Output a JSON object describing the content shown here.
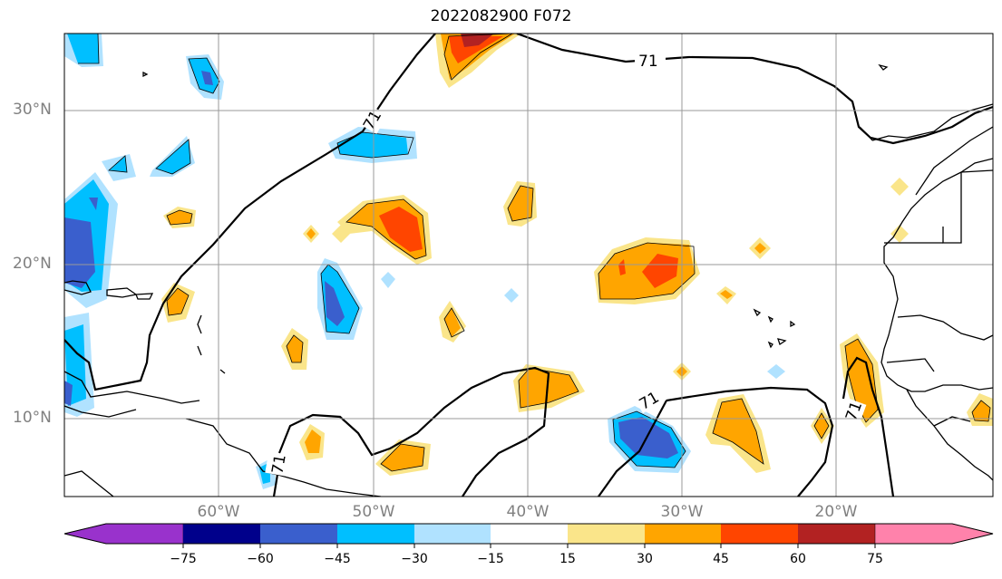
{
  "title": "2022082900 F072",
  "lat_labels": [
    "30°N",
    "20°N",
    "10°N"
  ],
  "lon_labels": [
    "60°W",
    "50°W",
    "40°W",
    "30°W",
    "20°W"
  ],
  "contour_label": "71",
  "colorbar": {
    "ticks": [
      "−75",
      "−60",
      "−45",
      "−30",
      "−15",
      "15",
      "30",
      "45",
      "60",
      "75"
    ],
    "colors": [
      "#9932cc",
      "#00008b",
      "#3a5fcd",
      "#00bfff",
      "#b0e2ff",
      "#ffffff",
      "#fae58a",
      "#ffa500",
      "#ff4500",
      "#b22222",
      "#ff82ab"
    ]
  }
}
